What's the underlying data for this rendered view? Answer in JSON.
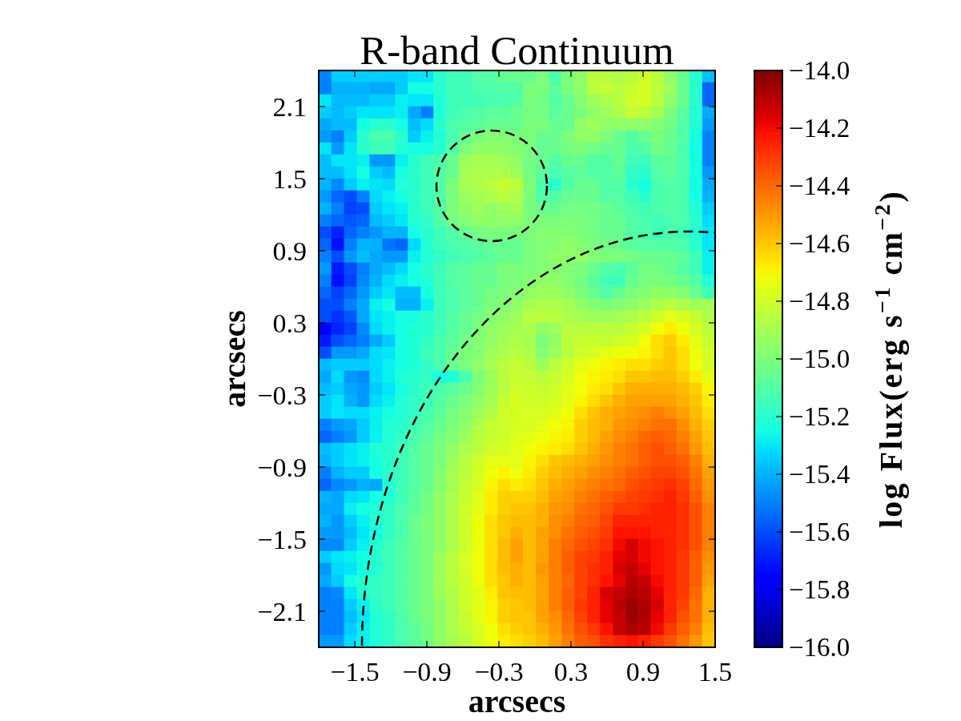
{
  "chart_data": {
    "type": "heatmap",
    "title": "R-band Continuum",
    "xlabel": "arcsecs",
    "ylabel": "arcsecs",
    "clabel": "log Flux(erg s$^{−1}$ cm$^{−2}$)",
    "x": [
      -1.747,
      -1.64,
      -1.534,
      -1.427,
      -1.321,
      -1.215,
      -1.108,
      -1.002,
      -0.895,
      -0.789,
      -0.682,
      -0.576,
      -0.469,
      -0.363,
      -0.256,
      -0.15,
      -0.044,
      0.063,
      0.169,
      0.276,
      0.382,
      0.489,
      0.595,
      0.702,
      0.808,
      0.915,
      1.021,
      1.127,
      1.234,
      1.34,
      1.447
    ],
    "y": [
      2.35,
      2.25,
      2.15,
      2.05,
      1.95,
      1.85,
      1.75,
      1.65,
      1.55,
      1.45,
      1.35,
      1.25,
      1.15,
      1.05,
      0.95,
      0.85,
      0.75,
      0.65,
      0.55,
      0.45,
      0.35,
      0.25,
      0.15,
      0.05,
      -0.05,
      -0.15,
      -0.25,
      -0.35,
      -0.45,
      -0.55,
      -0.65,
      -0.75,
      -0.85,
      -0.95,
      -1.05,
      -1.15,
      -1.25,
      -1.35,
      -1.45,
      -1.55,
      -1.65,
      -1.75,
      -1.85,
      -1.95,
      -2.05,
      -2.15,
      -2.25,
      -2.35
    ],
    "xlim": [
      -1.8,
      1.5
    ],
    "ylim": [
      -2.4,
      2.4
    ],
    "xticks": [
      {
        "value": -1.5,
        "label": "−1.5"
      },
      {
        "value": -0.9,
        "label": "−0.9"
      },
      {
        "value": -0.3,
        "label": "−0.3"
      },
      0.3,
      0.9,
      1.5
    ],
    "yticks": [
      {
        "value": -2.1,
        "label": "−2.1"
      },
      {
        "value": -1.5,
        "label": "−1.5"
      },
      {
        "value": -0.9,
        "label": "−0.9"
      },
      {
        "value": -0.3,
        "label": "−0.3"
      },
      0.3,
      0.9,
      1.5,
      2.1
    ],
    "clim": [
      -16,
      -14
    ],
    "cticks": [
      {
        "value": -16,
        "label": "−16.0"
      },
      {
        "value": -15.8,
        "label": "−15.8"
      },
      {
        "value": -15.6,
        "label": "−15.6"
      },
      {
        "value": -15.4,
        "label": "−15.4"
      },
      {
        "value": -15.2,
        "label": "−15.2"
      },
      {
        "value": -15,
        "label": "−15.0"
      },
      {
        "value": -14.8,
        "label": "−14.8"
      },
      {
        "value": -14.6,
        "label": "−14.6"
      },
      {
        "value": -14.4,
        "label": "−14.4"
      },
      {
        "value": -14.2,
        "label": "−14.2"
      },
      {
        "value": -14,
        "label": "−14.0"
      }
    ],
    "cells": [
      [
        -15.5,
        -15.35,
        -15.35,
        -15.35,
        -15.35,
        -15.35,
        -15.35,
        -15.3,
        -15.3,
        -15.2,
        -15.15,
        -15.15,
        -15.1,
        -15.1,
        -15.05,
        -15.05,
        -15.05,
        -15.0,
        -15.12,
        -15.0,
        -14.95,
        -14.85,
        -14.85,
        -14.88,
        -14.85,
        -14.8,
        -14.85,
        -14.95,
        -15.05,
        -15.2,
        -15.38
      ],
      [
        -15.5,
        -15.4,
        -15.4,
        -15.4,
        -15.42,
        -15.42,
        -15.35,
        -15.25,
        -15.25,
        -15.2,
        -15.15,
        -15.15,
        -15.12,
        -15.12,
        -15.1,
        -15.1,
        -15.0,
        -15.0,
        -15.08,
        -15.0,
        -14.95,
        -14.85,
        -14.82,
        -14.85,
        -14.82,
        -14.78,
        -14.85,
        -14.92,
        -15.05,
        -15.2,
        -15.55
      ],
      [
        -15.3,
        -15.38,
        -15.38,
        -15.38,
        -15.35,
        -15.35,
        -15.28,
        -15.3,
        -15.3,
        -15.22,
        -15.15,
        -15.15,
        -15.15,
        -15.12,
        -15.12,
        -15.1,
        -15.0,
        -15.02,
        -15.1,
        -15.05,
        -14.98,
        -14.92,
        -14.88,
        -14.85,
        -14.8,
        -14.78,
        -14.85,
        -14.95,
        -15.05,
        -15.2,
        -15.55
      ],
      [
        -15.35,
        -15.38,
        -15.35,
        -15.3,
        -15.3,
        -15.3,
        -15.28,
        -15.42,
        -15.5,
        -15.22,
        -15.15,
        -15.12,
        -15.1,
        -15.08,
        -15.08,
        -15.05,
        -15.02,
        -15.02,
        -15.08,
        -15.05,
        -15.0,
        -14.95,
        -14.92,
        -14.88,
        -14.82,
        -14.85,
        -14.9,
        -15.0,
        -15.08,
        -15.22,
        -15.42
      ],
      [
        -15.42,
        -15.38,
        -15.38,
        -15.25,
        -15.2,
        -15.2,
        -15.25,
        -15.38,
        -15.32,
        -15.2,
        -15.12,
        -15.1,
        -15.08,
        -15.05,
        -15.05,
        -15.05,
        -15.0,
        -15.0,
        -15.05,
        -15.05,
        -14.95,
        -14.92,
        -14.95,
        -14.95,
        -14.95,
        -14.95,
        -14.98,
        -15.02,
        -15.1,
        -15.22,
        -15.45
      ],
      [
        -15.45,
        -15.5,
        -15.35,
        -15.2,
        -15.12,
        -15.12,
        -15.2,
        -15.35,
        -15.28,
        -15.22,
        -15.12,
        -15.05,
        -15.0,
        -14.98,
        -14.98,
        -15.0,
        -15.0,
        -15.05,
        -15.05,
        -15.0,
        -14.95,
        -14.95,
        -15.0,
        -15.05,
        -15.1,
        -15.05,
        -15.0,
        -15.05,
        -15.1,
        -15.25,
        -15.5
      ],
      [
        -15.3,
        -15.45,
        -15.3,
        -15.2,
        -15.15,
        -15.15,
        -15.22,
        -15.25,
        -15.25,
        -15.2,
        -15.1,
        -15.0,
        -14.95,
        -14.95,
        -14.95,
        -14.98,
        -15.0,
        -15.05,
        -15.05,
        -15.02,
        -15.0,
        -15.02,
        -15.05,
        -15.05,
        -15.12,
        -15.1,
        -15.02,
        -15.05,
        -15.12,
        -15.25,
        -15.5
      ],
      [
        -15.38,
        -15.3,
        -15.3,
        -15.28,
        -15.45,
        -15.45,
        -15.28,
        -15.2,
        -15.15,
        -15.12,
        -15.05,
        -14.92,
        -14.9,
        -14.9,
        -14.92,
        -14.95,
        -15.02,
        -15.05,
        -15.1,
        -15.05,
        -15.05,
        -15.1,
        -15.1,
        -15.05,
        -15.15,
        -15.15,
        -15.08,
        -15.08,
        -15.12,
        -15.25,
        -15.5
      ],
      [
        -15.38,
        -15.38,
        -15.3,
        -15.25,
        -15.35,
        -15.38,
        -15.25,
        -15.2,
        -15.15,
        -15.1,
        -15.05,
        -14.9,
        -14.88,
        -14.88,
        -14.88,
        -14.92,
        -15.02,
        -15.08,
        -15.12,
        -15.1,
        -15.08,
        -15.1,
        -15.1,
        -15.08,
        -15.18,
        -15.2,
        -15.1,
        -15.08,
        -15.12,
        -15.25,
        -15.45
      ],
      [
        -15.4,
        -15.48,
        -15.35,
        -15.28,
        -15.3,
        -15.32,
        -15.22,
        -15.2,
        -15.15,
        -15.1,
        -15.0,
        -14.9,
        -14.88,
        -14.85,
        -14.82,
        -14.85,
        -15.0,
        -15.12,
        -15.2,
        -15.1,
        -15.05,
        -15.05,
        -15.1,
        -15.1,
        -15.2,
        -15.25,
        -15.12,
        -15.1,
        -15.12,
        -15.25,
        -15.42
      ],
      [
        -15.45,
        -15.55,
        -15.6,
        -15.5,
        -15.32,
        -15.28,
        -15.25,
        -15.2,
        -15.15,
        -15.1,
        -15.0,
        -14.92,
        -14.9,
        -14.88,
        -14.85,
        -14.88,
        -15.0,
        -15.1,
        -15.1,
        -15.05,
        -15.05,
        -15.05,
        -15.1,
        -15.1,
        -15.15,
        -15.2,
        -15.12,
        -15.1,
        -15.12,
        -15.25,
        -15.4
      ],
      [
        -15.4,
        -15.5,
        -15.62,
        -15.6,
        -15.35,
        -15.3,
        -15.28,
        -15.2,
        -15.15,
        -15.1,
        -15.0,
        -14.95,
        -14.92,
        -14.95,
        -14.92,
        -14.9,
        -15.0,
        -15.05,
        -15.05,
        -15.02,
        -15.02,
        -15.02,
        -15.05,
        -15.08,
        -15.12,
        -15.15,
        -15.12,
        -15.1,
        -15.12,
        -15.22,
        -15.35
      ],
      [
        -15.5,
        -15.55,
        -15.58,
        -15.55,
        -15.38,
        -15.35,
        -15.3,
        -15.22,
        -15.18,
        -15.1,
        -15.02,
        -14.98,
        -14.95,
        -14.95,
        -14.95,
        -14.95,
        -15.0,
        -15.0,
        -15.0,
        -15.0,
        -15.0,
        -15.02,
        -15.05,
        -15.05,
        -15.1,
        -15.12,
        -15.15,
        -15.12,
        -15.12,
        -15.2,
        -15.32
      ],
      [
        -15.6,
        -15.68,
        -15.55,
        -15.5,
        -15.45,
        -15.4,
        -15.4,
        -15.25,
        -15.2,
        -15.15,
        -15.1,
        -15.05,
        -15.02,
        -15.0,
        -15.0,
        -15.0,
        -15.0,
        -14.98,
        -14.98,
        -14.98,
        -15.0,
        -15.02,
        -15.05,
        -15.05,
        -15.1,
        -15.12,
        -15.15,
        -15.12,
        -15.15,
        -15.22,
        -15.3
      ],
      [
        -15.55,
        -15.72,
        -15.5,
        -15.4,
        -15.4,
        -15.52,
        -15.55,
        -15.32,
        -15.22,
        -15.15,
        -15.12,
        -15.1,
        -15.08,
        -15.05,
        -15.05,
        -15.05,
        -15.0,
        -14.98,
        -14.98,
        -14.95,
        -14.98,
        -15.0,
        -15.02,
        -15.05,
        -15.08,
        -15.1,
        -15.1,
        -15.1,
        -15.12,
        -15.2,
        -15.3
      ],
      [
        -15.5,
        -15.6,
        -15.45,
        -15.38,
        -15.42,
        -15.45,
        -15.45,
        -15.28,
        -15.22,
        -15.18,
        -15.15,
        -15.12,
        -15.1,
        -15.08,
        -15.05,
        -15.05,
        -15.0,
        -14.98,
        -14.95,
        -14.95,
        -14.95,
        -14.98,
        -15.0,
        -15.0,
        -15.02,
        -15.05,
        -15.05,
        -15.05,
        -15.08,
        -15.15,
        -15.28
      ],
      [
        -15.45,
        -15.7,
        -15.6,
        -15.5,
        -15.42,
        -15.38,
        -15.32,
        -15.25,
        -15.2,
        -15.15,
        -15.1,
        -15.08,
        -15.05,
        -15.05,
        -15.0,
        -15.0,
        -15.0,
        -14.98,
        -14.98,
        -14.98,
        -15.0,
        -15.05,
        -15.1,
        -15.12,
        -15.08,
        -15.02,
        -15.02,
        -15.05,
        -15.1,
        -15.15,
        -15.28
      ],
      [
        -15.5,
        -15.72,
        -15.62,
        -15.48,
        -15.4,
        -15.32,
        -15.28,
        -15.25,
        -15.22,
        -15.15,
        -15.1,
        -15.08,
        -15.05,
        -15.05,
        -15.0,
        -15.0,
        -14.98,
        -14.95,
        -14.95,
        -14.98,
        -15.02,
        -15.08,
        -15.15,
        -15.15,
        -15.05,
        -15.02,
        -15.0,
        -15.02,
        -15.05,
        -15.1,
        -15.22
      ],
      [
        -15.55,
        -15.62,
        -15.55,
        -15.45,
        -15.35,
        -15.3,
        -15.38,
        -15.38,
        -15.25,
        -15.15,
        -15.12,
        -15.08,
        -15.05,
        -15.02,
        -15.0,
        -14.98,
        -14.95,
        -14.92,
        -14.92,
        -14.95,
        -15.0,
        -15.05,
        -15.1,
        -15.05,
        -15.0,
        -14.98,
        -14.95,
        -14.95,
        -14.98,
        -15.05,
        -15.15
      ],
      [
        -15.6,
        -15.6,
        -15.5,
        -15.42,
        -15.28,
        -15.25,
        -15.4,
        -15.4,
        -15.28,
        -15.15,
        -15.12,
        -15.08,
        -15.05,
        -15.0,
        -14.98,
        -14.95,
        -14.9,
        -14.88,
        -14.88,
        -14.9,
        -14.95,
        -14.98,
        -15.0,
        -14.98,
        -14.95,
        -14.92,
        -14.88,
        -14.85,
        -14.88,
        -14.92,
        -14.9
      ],
      [
        -15.6,
        -15.65,
        -15.58,
        -15.42,
        -15.3,
        -15.28,
        -15.25,
        -15.25,
        -15.2,
        -15.15,
        -15.1,
        -15.05,
        -15.02,
        -14.98,
        -14.95,
        -14.92,
        -14.85,
        -14.85,
        -14.85,
        -14.88,
        -14.9,
        -14.92,
        -14.92,
        -14.9,
        -14.88,
        -14.85,
        -14.8,
        -14.75,
        -14.78,
        -14.82,
        -14.88
      ],
      [
        -15.75,
        -15.68,
        -15.62,
        -15.48,
        -15.32,
        -15.28,
        -15.25,
        -15.22,
        -15.2,
        -15.15,
        -15.1,
        -15.05,
        -15.0,
        -14.95,
        -14.92,
        -14.9,
        -14.88,
        -14.95,
        -14.92,
        -14.85,
        -14.85,
        -14.85,
        -14.85,
        -14.85,
        -14.82,
        -14.78,
        -14.72,
        -14.68,
        -14.72,
        -14.78,
        -14.85
      ],
      [
        -15.7,
        -15.6,
        -15.55,
        -15.5,
        -15.42,
        -15.35,
        -15.25,
        -15.22,
        -15.18,
        -15.12,
        -15.08,
        -15.02,
        -14.98,
        -14.95,
        -14.9,
        -14.88,
        -14.9,
        -15.0,
        -14.95,
        -14.85,
        -14.82,
        -14.82,
        -14.82,
        -14.8,
        -14.78,
        -14.72,
        -14.65,
        -14.62,
        -14.68,
        -14.75,
        -14.82
      ],
      [
        -15.6,
        -15.45,
        -15.45,
        -15.42,
        -15.32,
        -15.3,
        -15.25,
        -15.22,
        -15.15,
        -15.12,
        -15.05,
        -15.0,
        -14.98,
        -14.92,
        -14.88,
        -14.85,
        -14.88,
        -14.98,
        -14.92,
        -14.85,
        -14.8,
        -14.78,
        -14.75,
        -14.72,
        -14.72,
        -14.7,
        -14.65,
        -14.6,
        -14.65,
        -14.72,
        -14.8
      ],
      [
        -15.38,
        -15.35,
        -15.35,
        -15.35,
        -15.32,
        -15.28,
        -15.25,
        -15.22,
        -15.18,
        -15.12,
        -15.05,
        -15.0,
        -14.95,
        -14.9,
        -14.85,
        -14.82,
        -14.85,
        -14.92,
        -14.85,
        -14.8,
        -14.75,
        -14.72,
        -14.7,
        -14.68,
        -14.65,
        -14.65,
        -14.62,
        -14.6,
        -14.65,
        -14.72,
        -14.78
      ],
      [
        -15.42,
        -15.32,
        -15.45,
        -15.48,
        -15.32,
        -15.28,
        -15.22,
        -15.2,
        -15.18,
        -15.25,
        -15.22,
        -15.12,
        -15.0,
        -14.92,
        -14.85,
        -14.82,
        -14.82,
        -14.85,
        -14.82,
        -14.78,
        -14.72,
        -14.7,
        -14.68,
        -14.65,
        -14.6,
        -14.6,
        -14.58,
        -14.58,
        -14.62,
        -14.68,
        -14.75
      ],
      [
        -15.38,
        -15.35,
        -15.42,
        -15.45,
        -15.35,
        -15.3,
        -15.25,
        -15.2,
        -15.15,
        -15.12,
        -15.08,
        -15.05,
        -14.98,
        -14.92,
        -14.85,
        -14.8,
        -14.8,
        -14.82,
        -14.8,
        -14.75,
        -14.72,
        -14.68,
        -14.65,
        -14.6,
        -14.55,
        -14.55,
        -14.55,
        -14.55,
        -14.58,
        -14.62,
        -14.7
      ],
      [
        -15.35,
        -15.3,
        -15.4,
        -15.45,
        -15.32,
        -15.28,
        -15.22,
        -15.18,
        -15.15,
        -15.1,
        -15.05,
        -15.0,
        -14.95,
        -14.9,
        -14.82,
        -14.78,
        -14.8,
        -14.8,
        -14.78,
        -14.75,
        -14.7,
        -14.65,
        -14.6,
        -14.55,
        -14.52,
        -14.52,
        -14.52,
        -14.52,
        -14.55,
        -14.6,
        -14.68
      ],
      [
        -15.35,
        -15.3,
        -15.32,
        -15.32,
        -15.28,
        -15.25,
        -15.22,
        -15.18,
        -15.12,
        -15.08,
        -15.02,
        -14.98,
        -14.92,
        -14.88,
        -14.8,
        -14.78,
        -14.78,
        -14.78,
        -14.75,
        -14.72,
        -14.65,
        -14.6,
        -14.55,
        -14.52,
        -14.5,
        -14.48,
        -14.45,
        -14.48,
        -14.52,
        -14.58,
        -14.65
      ],
      [
        -15.5,
        -15.45,
        -15.42,
        -15.35,
        -15.28,
        -15.22,
        -15.2,
        -15.15,
        -15.1,
        -15.05,
        -15.0,
        -14.95,
        -14.88,
        -14.82,
        -14.8,
        -14.78,
        -14.78,
        -14.75,
        -14.72,
        -14.7,
        -14.62,
        -14.58,
        -14.55,
        -14.5,
        -14.48,
        -14.45,
        -14.42,
        -14.42,
        -14.48,
        -14.55,
        -14.62
      ],
      [
        -15.55,
        -15.5,
        -15.45,
        -15.35,
        -15.28,
        -15.22,
        -15.18,
        -15.12,
        -15.08,
        -15.02,
        -14.98,
        -14.92,
        -14.85,
        -14.82,
        -14.8,
        -14.76,
        -14.75,
        -14.72,
        -14.7,
        -14.68,
        -14.62,
        -14.58,
        -14.52,
        -14.48,
        -14.45,
        -14.4,
        -14.38,
        -14.4,
        -14.45,
        -14.52,
        -14.6
      ],
      [
        -15.38,
        -15.35,
        -15.3,
        -15.28,
        -15.22,
        -15.2,
        -15.15,
        -15.1,
        -15.05,
        -15.0,
        -14.95,
        -14.88,
        -14.85,
        -14.8,
        -14.78,
        -14.75,
        -14.72,
        -14.7,
        -14.68,
        -14.65,
        -14.6,
        -14.55,
        -14.5,
        -14.45,
        -14.42,
        -14.38,
        -14.35,
        -14.38,
        -14.42,
        -14.5,
        -14.58
      ],
      [
        -15.4,
        -15.35,
        -15.3,
        -15.28,
        -15.25,
        -15.2,
        -15.15,
        -15.1,
        -15.05,
        -15.0,
        -14.92,
        -14.85,
        -14.8,
        -14.75,
        -14.75,
        -14.75,
        -14.7,
        -14.65,
        -14.6,
        -14.58,
        -14.55,
        -14.52,
        -14.48,
        -14.45,
        -14.42,
        -14.38,
        -14.35,
        -14.35,
        -14.38,
        -14.45,
        -14.55
      ],
      [
        -15.5,
        -15.4,
        -15.35,
        -15.35,
        -15.25,
        -15.2,
        -15.15,
        -15.1,
        -15.05,
        -14.98,
        -14.9,
        -14.85,
        -14.78,
        -14.72,
        -14.7,
        -14.72,
        -14.68,
        -14.62,
        -14.58,
        -14.55,
        -14.52,
        -14.48,
        -14.45,
        -14.42,
        -14.38,
        -14.35,
        -14.32,
        -14.32,
        -14.35,
        -14.42,
        -14.52
      ],
      [
        -15.55,
        -15.48,
        -15.45,
        -15.4,
        -15.42,
        -15.22,
        -15.15,
        -15.1,
        -15.05,
        -14.98,
        -14.9,
        -14.82,
        -14.78,
        -14.7,
        -14.65,
        -14.68,
        -14.65,
        -14.6,
        -14.55,
        -14.52,
        -14.48,
        -14.45,
        -14.42,
        -14.4,
        -14.35,
        -14.32,
        -14.3,
        -14.28,
        -14.32,
        -14.4,
        -14.5
      ],
      [
        -15.4,
        -15.42,
        -15.32,
        -15.3,
        -15.25,
        -15.22,
        -15.15,
        -15.08,
        -15.02,
        -14.95,
        -14.88,
        -14.82,
        -14.75,
        -14.68,
        -14.62,
        -14.62,
        -14.62,
        -14.58,
        -14.52,
        -14.5,
        -14.45,
        -14.42,
        -14.38,
        -14.35,
        -14.32,
        -14.3,
        -14.28,
        -14.25,
        -14.3,
        -14.38,
        -14.48
      ],
      [
        -15.42,
        -15.42,
        -15.28,
        -15.25,
        -15.22,
        -15.18,
        -15.12,
        -15.08,
        -15.02,
        -14.95,
        -14.88,
        -14.8,
        -14.75,
        -14.68,
        -14.62,
        -14.6,
        -14.6,
        -14.55,
        -14.5,
        -14.48,
        -14.42,
        -14.4,
        -14.35,
        -14.3,
        -14.3,
        -14.28,
        -14.25,
        -14.25,
        -14.28,
        -14.35,
        -14.45
      ],
      [
        -15.4,
        -15.45,
        -15.35,
        -15.28,
        -15.22,
        -15.18,
        -15.12,
        -15.05,
        -15.0,
        -14.95,
        -14.88,
        -14.8,
        -14.72,
        -14.65,
        -14.6,
        -14.58,
        -14.58,
        -14.55,
        -14.48,
        -14.45,
        -14.4,
        -14.38,
        -14.32,
        -14.25,
        -14.25,
        -14.25,
        -14.25,
        -14.25,
        -14.28,
        -14.35,
        -14.45
      ],
      [
        -15.45,
        -15.45,
        -15.38,
        -15.3,
        -15.25,
        -15.18,
        -15.12,
        -15.05,
        -15.0,
        -14.95,
        -14.88,
        -14.8,
        -14.72,
        -14.65,
        -14.6,
        -14.55,
        -14.58,
        -14.52,
        -14.48,
        -14.42,
        -14.38,
        -14.35,
        -14.3,
        -14.22,
        -14.22,
        -14.22,
        -14.25,
        -14.25,
        -14.28,
        -14.35,
        -14.45
      ],
      [
        -15.48,
        -15.48,
        -15.35,
        -15.28,
        -15.22,
        -15.15,
        -15.1,
        -15.05,
        -15.0,
        -14.95,
        -14.88,
        -14.8,
        -14.72,
        -14.65,
        -14.58,
        -14.52,
        -14.58,
        -14.52,
        -14.45,
        -14.4,
        -14.35,
        -14.32,
        -14.28,
        -14.2,
        -14.15,
        -14.2,
        -14.22,
        -14.25,
        -14.28,
        -14.35,
        -14.45
      ],
      [
        -15.35,
        -15.3,
        -15.28,
        -15.25,
        -15.2,
        -15.15,
        -15.1,
        -15.05,
        -15.0,
        -14.92,
        -14.85,
        -14.78,
        -14.72,
        -14.65,
        -14.58,
        -14.52,
        -14.58,
        -14.52,
        -14.45,
        -14.38,
        -14.32,
        -14.3,
        -14.25,
        -14.18,
        -14.15,
        -14.2,
        -14.22,
        -14.25,
        -14.3,
        -14.38,
        -14.48
      ],
      [
        -15.45,
        -15.32,
        -15.3,
        -15.25,
        -15.22,
        -15.15,
        -15.1,
        -15.05,
        -15.0,
        -14.92,
        -14.85,
        -14.78,
        -14.72,
        -14.65,
        -14.58,
        -14.55,
        -14.58,
        -14.5,
        -14.45,
        -14.38,
        -14.32,
        -14.28,
        -14.25,
        -14.15,
        -14.12,
        -14.18,
        -14.22,
        -14.25,
        -14.3,
        -14.38,
        -14.5
      ],
      [
        -15.42,
        -15.35,
        -15.25,
        -15.2,
        -15.18,
        -15.15,
        -15.1,
        -15.05,
        -15.0,
        -14.92,
        -14.85,
        -14.8,
        -14.72,
        -14.65,
        -14.6,
        -14.55,
        -14.58,
        -14.52,
        -14.45,
        -14.4,
        -14.32,
        -14.28,
        -14.22,
        -14.18,
        -14.1,
        -14.12,
        -14.2,
        -14.25,
        -14.3,
        -14.38,
        -14.52
      ],
      [
        -15.5,
        -15.48,
        -15.3,
        -15.22,
        -15.18,
        -15.15,
        -15.1,
        -15.05,
        -15.0,
        -14.92,
        -14.88,
        -14.8,
        -14.75,
        -14.68,
        -14.6,
        -14.58,
        -14.58,
        -14.52,
        -14.45,
        -14.38,
        -14.32,
        -14.25,
        -14.15,
        -14.12,
        -14.08,
        -14.1,
        -14.18,
        -14.25,
        -14.3,
        -14.4,
        -14.55
      ],
      [
        -15.5,
        -15.5,
        -15.35,
        -15.28,
        -15.2,
        -15.15,
        -15.1,
        -15.05,
        -15.0,
        -14.95,
        -14.88,
        -14.8,
        -14.75,
        -14.7,
        -14.62,
        -14.6,
        -14.58,
        -14.52,
        -14.45,
        -14.38,
        -14.3,
        -14.25,
        -14.18,
        -14.1,
        -14.05,
        -14.08,
        -14.15,
        -14.25,
        -14.32,
        -14.42,
        -14.55
      ],
      [
        -15.5,
        -15.5,
        -15.38,
        -15.3,
        -15.22,
        -15.18,
        -15.12,
        -15.05,
        -15.0,
        -14.95,
        -14.88,
        -14.82,
        -14.75,
        -14.7,
        -14.62,
        -14.6,
        -14.6,
        -14.52,
        -14.48,
        -14.4,
        -14.32,
        -14.25,
        -14.18,
        -14.12,
        -14.05,
        -14.08,
        -14.18,
        -14.25,
        -14.35,
        -14.42,
        -14.55
      ],
      [
        -15.5,
        -15.5,
        -15.35,
        -15.28,
        -15.22,
        -15.18,
        -15.12,
        -15.08,
        -15.02,
        -14.95,
        -14.88,
        -14.82,
        -14.78,
        -14.72,
        -14.65,
        -14.62,
        -14.6,
        -14.55,
        -14.5,
        -14.42,
        -14.35,
        -14.3,
        -14.22,
        -14.12,
        -14.08,
        -14.1,
        -14.2,
        -14.3,
        -14.38,
        -14.45,
        -14.58
      ],
      [
        -15.45,
        -15.45,
        -15.32,
        -15.28,
        -15.22,
        -15.18,
        -15.12,
        -15.08,
        -15.02,
        -14.95,
        -14.9,
        -14.85,
        -14.78,
        -14.72,
        -14.68,
        -14.65,
        -14.62,
        -14.58,
        -14.52,
        -14.45,
        -14.38,
        -14.35,
        -14.28,
        -14.25,
        -14.22,
        -14.25,
        -14.3,
        -14.35,
        -14.42,
        -14.5,
        -14.6
      ]
    ]
  }
}
